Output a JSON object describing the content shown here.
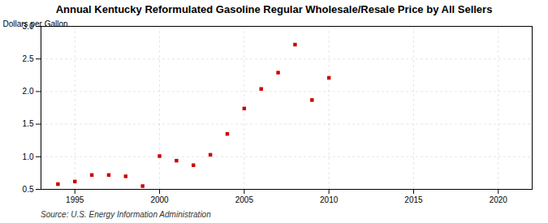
{
  "chart_data": {
    "type": "scatter",
    "title": "Annual Kentucky Reformulated Gasoline Regular Wholesale/Resale Price by All Sellers",
    "ylabel": "Dollars per Gallon",
    "source": "Source: U.S. Energy Information Administration",
    "x": [
      1994,
      1995,
      1996,
      1997,
      1998,
      1999,
      2000,
      2001,
      2002,
      2003,
      2004,
      2005,
      2006,
      2007,
      2008,
      2009,
      2010
    ],
    "values": [
      0.58,
      0.62,
      0.72,
      0.72,
      0.7,
      0.55,
      1.01,
      0.94,
      0.87,
      1.03,
      1.35,
      1.74,
      2.04,
      2.29,
      2.72,
      1.87,
      2.21
    ],
    "color": "#cc0000",
    "marker": "square",
    "xlim": [
      1993,
      2022
    ],
    "xticks": [
      1995,
      2000,
      2005,
      2010,
      2015,
      2020
    ],
    "ylim": [
      0.5,
      3.0
    ],
    "yticks": [
      0.5,
      {
        "value": 1.0,
        "label": "1.0"
      },
      1.5,
      {
        "value": 2.0,
        "label": "2.0"
      },
      2.5,
      {
        "value": 3.0,
        "label": "3.0"
      }
    ],
    "grid": true
  }
}
